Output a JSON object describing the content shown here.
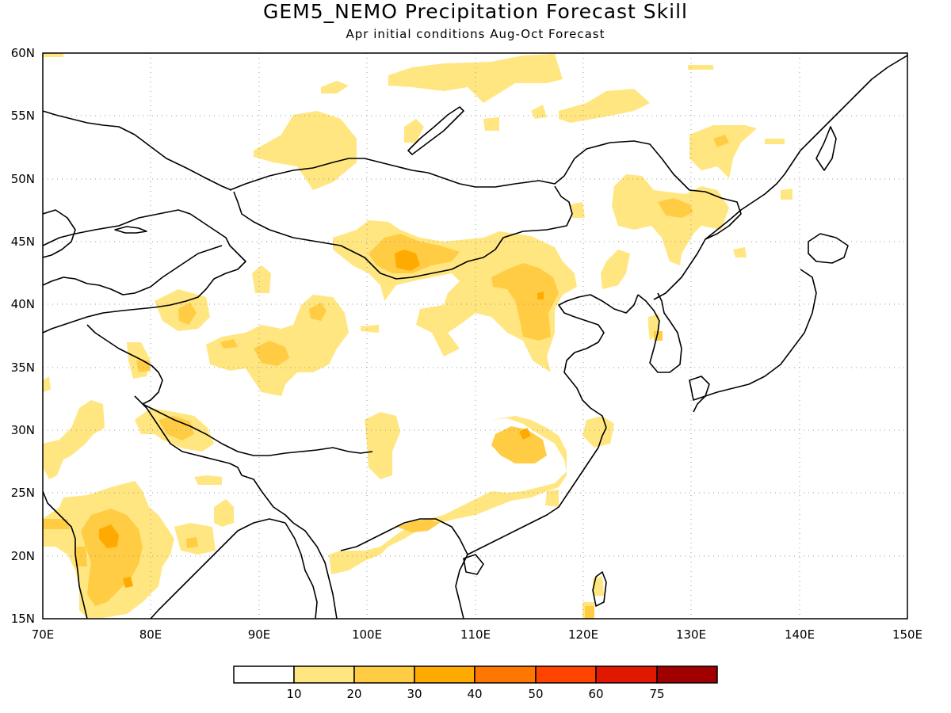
{
  "title": "GEM5_NEMO Precipitation Forecast Skill",
  "subtitle": "Apr initial conditions  Aug-Oct Forecast",
  "map": {
    "lon_range": [
      70,
      150
    ],
    "lat_range": [
      15,
      60
    ],
    "lon_ticks": [
      "70E",
      "80E",
      "90E",
      "100E",
      "110E",
      "120E",
      "130E",
      "140E",
      "150E"
    ],
    "lat_ticks": [
      "15N",
      "20N",
      "25N",
      "30N",
      "35N",
      "40N",
      "45N",
      "50N",
      "55N",
      "60N"
    ],
    "grid": true,
    "coastlines": true,
    "borders": true
  },
  "colorbar": {
    "labels": [
      "10",
      "20",
      "30",
      "40",
      "50",
      "60",
      "75"
    ],
    "colors": [
      "#ffffff",
      "#ffe680",
      "#ffcc44",
      "#ffaa00",
      "#ff7700",
      "#ff4400",
      "#e01800",
      "#a00000"
    ]
  }
}
